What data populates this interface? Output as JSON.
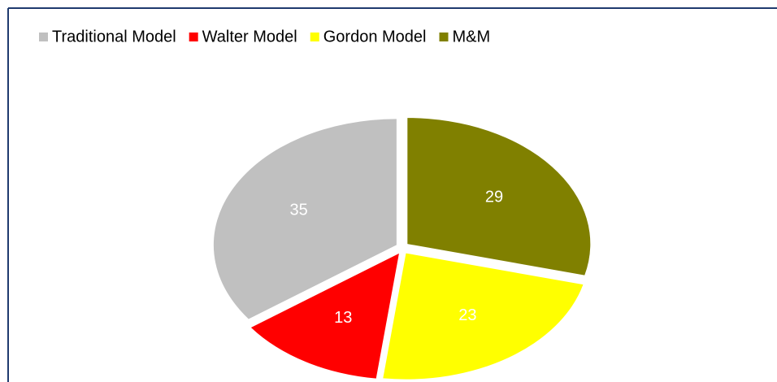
{
  "chart_data": {
    "type": "pie",
    "categories": [
      "Traditional Model",
      "Walter Model",
      "Gordon Model",
      "M&M"
    ],
    "values": [
      35,
      13,
      23,
      29
    ],
    "colors": [
      "#c0c0c0",
      "#ff0000",
      "#ffff00",
      "#808000"
    ],
    "legend": "top"
  }
}
